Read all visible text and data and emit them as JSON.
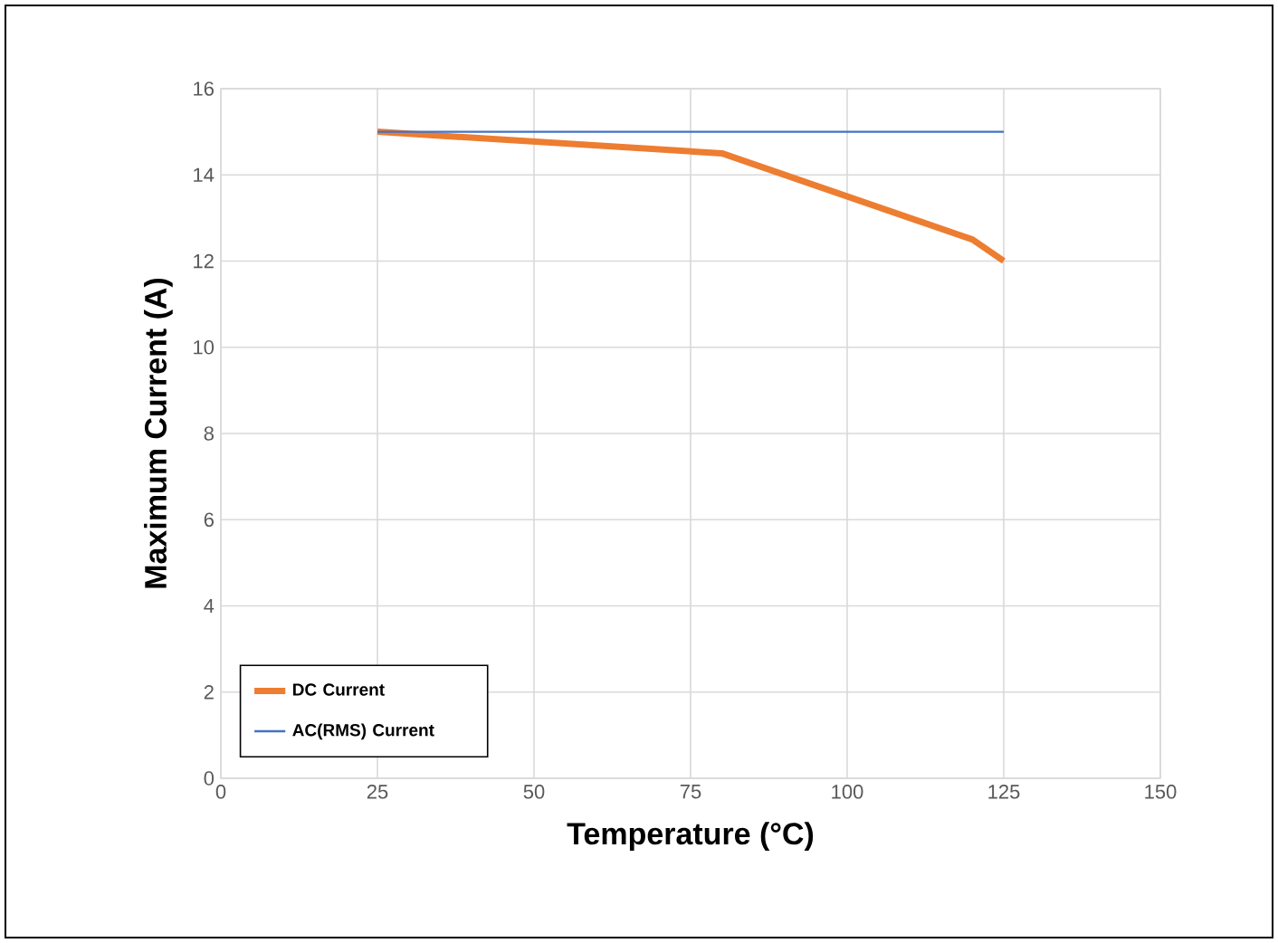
{
  "chart_data": {
    "type": "line",
    "xlabel": "Temperature (°C)",
    "ylabel": "Maximum Current (A)",
    "xlim": [
      0,
      150
    ],
    "xticks": [
      0,
      25,
      50,
      75,
      100,
      125,
      150
    ],
    "ylim": [
      0,
      16
    ],
    "yticks": [
      0,
      2,
      4,
      6,
      8,
      10,
      12,
      14,
      16
    ],
    "grid": true,
    "legend": "bottom left",
    "marker": "none",
    "line_style": "solid",
    "series": [
      {
        "name": "DC Current",
        "color": "#ed7d31",
        "x": [
          25,
          80,
          120,
          125
        ],
        "values": [
          15,
          14.5,
          12.5,
          12
        ]
      },
      {
        "name": "AC(RMS) Current",
        "color": "#4472c4",
        "x": [
          25,
          125
        ],
        "values": [
          15,
          15
        ]
      }
    ]
  }
}
